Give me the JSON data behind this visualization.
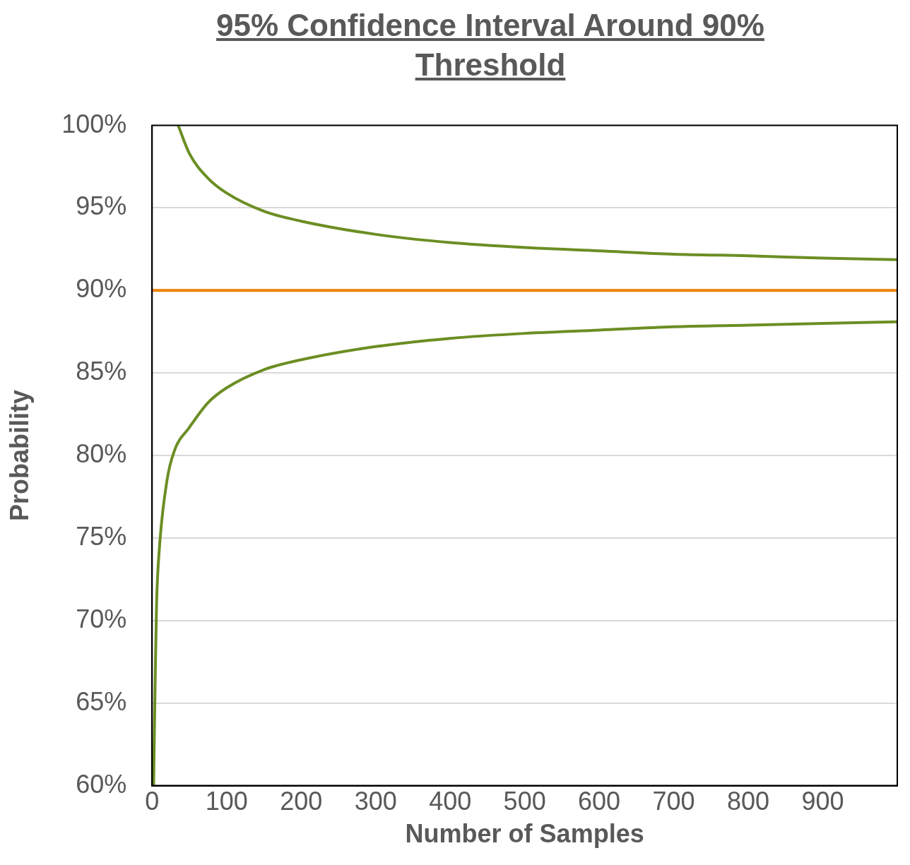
{
  "chart_data": {
    "type": "line",
    "title": "95% Confidence Interval Around 90% Threshold",
    "xlabel": "Number of Samples",
    "ylabel": "Probability",
    "series": [
      {
        "color": "#6b8e23",
        "x": [
          35,
          50,
          75,
          100,
          150,
          200,
          300,
          400,
          500,
          600,
          700,
          800,
          900,
          1000
        ],
        "values": [
          100,
          98.3,
          96.8,
          95.9,
          94.8,
          94.2,
          93.4,
          92.9,
          92.6,
          92.4,
          92.2,
          92.1,
          91.96,
          91.86
        ]
      },
      {
        "color": "#6b8e23",
        "x": [
          2,
          4,
          6,
          10,
          20,
          30,
          50,
          75,
          100,
          150,
          200,
          300,
          400,
          500,
          600,
          700,
          800,
          900,
          1000
        ],
        "values": [
          60,
          66,
          71,
          74.5,
          78.5,
          80.3,
          81.7,
          83.2,
          84.1,
          85.2,
          85.8,
          86.6,
          87.1,
          87.4,
          87.6,
          87.8,
          87.9,
          88,
          88.1
        ]
      }
    ],
    "ref_lines": [
      {
        "axis": "y",
        "value": 90,
        "color": "#f08000"
      }
    ],
    "xlim": [
      0,
      1000
    ],
    "xticks": [
      0,
      100,
      200,
      300,
      400,
      500,
      600,
      700,
      800,
      900
    ],
    "ylim": [
      60,
      100
    ],
    "yticks": [
      {
        "value": 60,
        "label": "60%"
      },
      {
        "value": 65,
        "label": "65%"
      },
      {
        "value": 70,
        "label": "70%"
      },
      {
        "value": 75,
        "label": "75%"
      },
      {
        "value": 80,
        "label": "80%"
      },
      {
        "value": 85,
        "label": "85%"
      },
      {
        "value": 90,
        "label": "90%"
      },
      {
        "value": 95,
        "label": "95%"
      },
      {
        "value": 100,
        "label": "100%"
      }
    ],
    "grid": "y",
    "legend": false,
    "marker": "none",
    "line_style": "solid"
  }
}
